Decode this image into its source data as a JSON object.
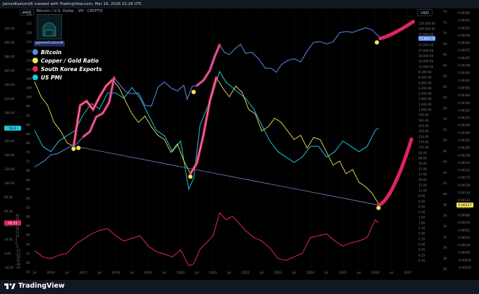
{
  "header": {
    "title": "JamesEastonUK created with TradingView.com, Mar 16, 2026 22:28 UTC",
    "symbol": "Bitcoin / U.S. Dollar · 1M · CRYPTO",
    "point_label": "point",
    "currency_label": "USD"
  },
  "avatar": {
    "handle": "@JamesEastonUK"
  },
  "footer": {
    "brand": "TradingView"
  },
  "colors": {
    "bitcoin": "#5b8cf0",
    "copper_gold": "#f5e15a",
    "korea_exports": "#e0245e",
    "us_pmi": "#1ec6d8",
    "background": "#000000"
  },
  "chart_data": {
    "type": "line",
    "x_ticks": [
      "Jul",
      "2016",
      "Jul",
      "2017",
      "Jul",
      "2018",
      "Jul",
      "2019",
      "Jul",
      "2020",
      "Jul",
      "2021",
      "Jul",
      "2022",
      "Jul",
      "2023",
      "Jul",
      "2024",
      "Jul",
      "2025",
      "Jul",
      "2026",
      "Jul",
      "2027"
    ],
    "legend": [
      {
        "name": "Bitcoin",
        "color": "#5b8cf0"
      },
      {
        "name": "Copper / Gold Ratio",
        "color": "#f5e15a"
      },
      {
        "name": "South Korea Exports",
        "color": "#e0245e"
      },
      {
        "name": "US PMI",
        "color": "#1ec6d8"
      }
    ],
    "left_axis_1": [
      "320.00",
      "300.00",
      "280.00",
      "260.00",
      "240.00",
      "220.00",
      "200.00",
      "180.00",
      "160.00",
      "140.00",
      "120.00",
      "100.00",
      "80.00",
      "60.00",
      "40.00",
      "20.00",
      "0.00",
      "-20.00"
    ],
    "left_axis_2": [
      "136",
      "132",
      "128",
      "124",
      "120",
      "116",
      "112",
      "108",
      "104",
      "100",
      "96",
      "92",
      "88",
      "84",
      "80",
      "76",
      "72",
      "68",
      "64",
      "60",
      "56",
      "52",
      "48",
      "44",
      "40",
      "36",
      "32",
      "28",
      "24"
    ],
    "left_axis_3": [
      "40",
      "35",
      "30",
      "25",
      "20",
      "15",
      "10",
      "5",
      "0",
      "-5",
      "-10",
      "-15",
      "-20",
      "-25",
      "-30",
      "-35"
    ],
    "right_axis_1": [
      "130,000.00",
      "100,000.00",
      "75,000.00",
      "52,000.00",
      "37,000.00",
      "27,000.00",
      "20,000.00",
      "15,000.00",
      "11,000.00",
      "8,300.00",
      "6,200.00",
      "4,600.00",
      "3,400.00",
      "2,500.00",
      "1,900.00",
      "1,400.00",
      "1,000.00",
      "750.00",
      "560.00",
      "410.00",
      "310.00",
      "230.00",
      "170.00",
      "125.00",
      "92.00",
      "68.00",
      "50.00",
      "37.00",
      "27.00",
      "20.00",
      "15.00",
      "11.00",
      "8.00",
      "6.00",
      "4.50",
      "3.50",
      "2.50",
      "1.80",
      "1.30",
      "0.95",
      "0.70",
      "0.50",
      "0.35",
      "0.25",
      "0.15"
    ],
    "right_axis_2": [
      "74",
      "72",
      "70",
      "68",
      "66",
      "64",
      "62",
      "60",
      "58",
      "56",
      "54",
      "52",
      "50",
      "48",
      "46",
      "44",
      "42",
      "40",
      "38",
      "36",
      "34",
      "32",
      "30",
      "28",
      "26"
    ],
    "right_axis_3": [
      "0.00560",
      "0.00542",
      "0.00525",
      "0.00508",
      "0.00490",
      "0.00472",
      "0.00455",
      "0.00438",
      "0.00420",
      "0.00402",
      "0.00385",
      "0.00368",
      "0.00350",
      "0.00332",
      "0.00315",
      "0.00298",
      "0.00280",
      "0.00262",
      "0.00245",
      "0.00228",
      "0.00210",
      "0.00192",
      "0.00175",
      "0.00158",
      "0.00140",
      "0.00122",
      "0.00105",
      "0.00088",
      "0.00070",
      "0.00052",
      "0.00035",
      "0.00018",
      "0.00000",
      "-0.00018",
      "-0.00035"
    ],
    "price_tags": [
      {
        "label": "73,603.70",
        "color": "#5b8cf0",
        "axis_value": 73603.7
      },
      {
        "label": "0.00117",
        "color": "#f5e15a",
        "axis_value": 0.00117
      },
      {
        "label": "26.53",
        "color": "#e0245e",
        "axis_value": 26.53
      },
      {
        "label": "52.4",
        "color": "#1ec6d8",
        "axis_value": 52.4
      }
    ],
    "series": [
      {
        "name": "Bitcoin",
        "x": [
          2015.5,
          2015.8,
          2016.0,
          2016.2,
          2016.4,
          2016.6,
          2016.8,
          2017.0,
          2017.2,
          2017.4,
          2017.6,
          2017.8,
          2017.95,
          2018.1,
          2018.3,
          2018.5,
          2018.7,
          2018.9,
          2019.1,
          2019.3,
          2019.5,
          2019.7,
          2019.9,
          2020.1,
          2020.2,
          2020.35,
          2020.5,
          2020.7,
          2020.9,
          2021.05,
          2021.2,
          2021.35,
          2021.5,
          2021.7,
          2021.85,
          2022.0,
          2022.2,
          2022.4,
          2022.6,
          2022.8,
          2022.95,
          2023.1,
          2023.3,
          2023.5,
          2023.7,
          2023.9,
          2024.1,
          2024.3,
          2024.5,
          2024.7,
          2024.9,
          2025.1,
          2025.3,
          2025.5,
          2025.7,
          2025.9,
          2026.05,
          2026.2
        ],
        "values": [
          250,
          330,
          430,
          450,
          530,
          620,
          700,
          960,
          1200,
          2300,
          2700,
          4400,
          13000,
          10000,
          7000,
          6400,
          6600,
          3800,
          3700,
          8500,
          10800,
          8300,
          7200,
          9300,
          5000,
          8800,
          9200,
          11500,
          18000,
          33000,
          55000,
          40000,
          36000,
          48000,
          57000,
          38000,
          40000,
          30000,
          20000,
          19500,
          16500,
          23000,
          28000,
          30000,
          26000,
          42000,
          62000,
          64000,
          58000,
          63000,
          95000,
          100000,
          96000,
          107000,
          118000,
          108000,
          87000,
          73603.7
        ]
      },
      {
        "name": "Copper / Gold Ratio",
        "x": [
          2015.5,
          2015.7,
          2015.9,
          2016.1,
          2016.3,
          2016.5,
          2016.7,
          2016.9,
          2017.1,
          2017.3,
          2017.5,
          2017.7,
          2017.9,
          2018.1,
          2018.3,
          2018.5,
          2018.7,
          2018.9,
          2019.1,
          2019.3,
          2019.5,
          2019.7,
          2019.9,
          2020.1,
          2020.3,
          2020.5,
          2020.7,
          2020.9,
          2021.1,
          2021.3,
          2021.5,
          2021.7,
          2021.9,
          2022.1,
          2022.3,
          2022.5,
          2022.7,
          2022.9,
          2023.1,
          2023.3,
          2023.5,
          2023.7,
          2023.9,
          2024.1,
          2024.3,
          2024.5,
          2024.7,
          2024.9,
          2025.1,
          2025.3,
          2025.5,
          2025.7,
          2025.9,
          2026.1,
          2026.2
        ],
        "values": [
          0.00405,
          0.0037,
          0.0035,
          0.0031,
          0.0029,
          0.00262,
          0.00255,
          0.0035,
          0.0036,
          0.0034,
          0.0037,
          0.00395,
          0.0041,
          0.00392,
          0.0036,
          0.0033,
          0.0031,
          0.00325,
          0.003,
          0.0028,
          0.0027,
          0.0024,
          0.0026,
          0.0022,
          0.0019,
          0.00215,
          0.0028,
          0.0036,
          0.00415,
          0.0039,
          0.0037,
          0.00395,
          0.0038,
          0.0034,
          0.0033,
          0.0029,
          0.003,
          0.0032,
          0.0031,
          0.0029,
          0.0027,
          0.0028,
          0.0025,
          0.00275,
          0.0027,
          0.0024,
          0.0021,
          0.0022,
          0.0019,
          0.002,
          0.0017,
          0.0016,
          0.00145,
          0.0012,
          0.00117
        ]
      },
      {
        "name": "South Korea Exports",
        "x": [
          2015.5,
          2015.75,
          2016.0,
          2016.25,
          2016.5,
          2016.75,
          2017.0,
          2017.25,
          2017.5,
          2017.75,
          2018.0,
          2018.25,
          2018.5,
          2018.75,
          2019.0,
          2019.25,
          2019.5,
          2019.75,
          2020.0,
          2020.25,
          2020.4,
          2020.6,
          2020.8,
          2021.0,
          2021.2,
          2021.4,
          2021.6,
          2021.8,
          2022.0,
          2022.25,
          2022.5,
          2022.75,
          2023.0,
          2023.25,
          2023.5,
          2023.75,
          2024.0,
          2024.25,
          2024.5,
          2024.75,
          2025.0,
          2025.25,
          2025.5,
          2025.75,
          2026.0,
          2026.1
        ],
        "values": [
          -5,
          -12,
          -14,
          -10,
          -8,
          2,
          8,
          14,
          18,
          20,
          12,
          6,
          9,
          12,
          0,
          -6,
          -9,
          -12,
          -4,
          -22,
          -20,
          -3,
          4,
          12,
          38,
          30,
          34,
          26,
          18,
          10,
          6,
          -2,
          -14,
          -16,
          -12,
          -8,
          10,
          12,
          14,
          6,
          0,
          4,
          6,
          10,
          30,
          26.53
        ]
      },
      {
        "name": "US PMI",
        "x": [
          2015.5,
          2015.75,
          2016.0,
          2016.25,
          2016.5,
          2016.75,
          2017.0,
          2017.25,
          2017.5,
          2017.75,
          2018.0,
          2018.25,
          2018.5,
          2018.75,
          2019.0,
          2019.25,
          2019.5,
          2019.75,
          2020.0,
          2020.25,
          2020.4,
          2020.6,
          2020.8,
          2021.0,
          2021.2,
          2021.4,
          2021.6,
          2021.8,
          2022.0,
          2022.25,
          2022.5,
          2022.75,
          2023.0,
          2023.25,
          2023.5,
          2023.75,
          2024.0,
          2024.25,
          2024.5,
          2024.75,
          2025.0,
          2025.25,
          2025.5,
          2025.75,
          2026.0,
          2026.1
        ],
        "values": [
          52,
          49,
          48,
          50,
          51,
          52,
          55,
          57,
          56,
          59,
          59,
          58,
          60,
          58,
          55,
          52,
          51,
          48,
          50,
          41,
          43,
          53,
          56,
          59,
          63,
          61,
          60,
          59,
          58,
          56,
          53,
          50,
          48,
          47,
          46,
          47,
          49,
          49,
          47,
          48,
          50,
          49,
          48,
          49,
          52,
          52.4
        ]
      }
    ],
    "markers": [
      {
        "series": "Bitcoin",
        "x": 2016.85,
        "value": 660
      },
      {
        "series": "Bitcoin",
        "x": 2020.4,
        "value": 7800
      },
      {
        "series": "Bitcoin",
        "x": 2026.05,
        "value": 70000
      },
      {
        "series": "Copper / Gold Ratio",
        "x": 2016.7,
        "value": 0.00255
      },
      {
        "series": "Copper / Gold Ratio",
        "x": 2020.3,
        "value": 0.0019
      },
      {
        "series": "Copper / Gold Ratio",
        "x": 2026.1,
        "value": 0.00117
      }
    ]
  }
}
